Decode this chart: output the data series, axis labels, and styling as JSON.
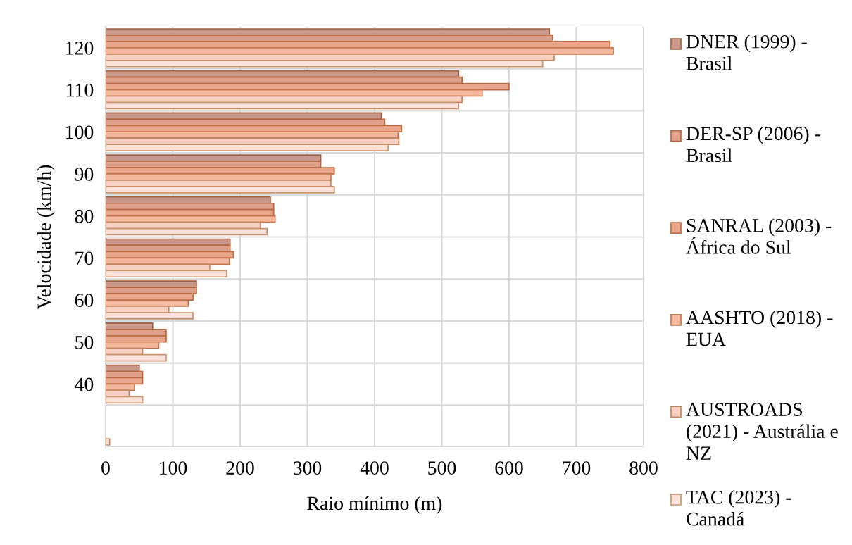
{
  "chart_data": {
    "type": "bar",
    "orientation": "horizontal",
    "xlabel": "Raio mínimo (m)",
    "ylabel": "Velocidade (km/h)",
    "categories": [
      "120",
      "110",
      "100",
      "90",
      "80",
      "70",
      "60",
      "50",
      "40",
      null
    ],
    "series": [
      {
        "name": "DNER (1999) - Brasil",
        "color": "#c8978a",
        "values": [
          660,
          525,
          410,
          320,
          245,
          185,
          135,
          70,
          50,
          null
        ]
      },
      {
        "name": "DER-SP (2006) - Brasil",
        "color": "#dea08a",
        "values": [
          665,
          530,
          415,
          320,
          250,
          185,
          135,
          90,
          55,
          null
        ]
      },
      {
        "name": "SANRAL (2003) - África do Sul",
        "color": "#eaa68a",
        "values": [
          750,
          600,
          440,
          340,
          250,
          190,
          130,
          90,
          55,
          null
        ]
      },
      {
        "name": "AASHTO (2018) - EUA",
        "color": "#f4b89e",
        "values": [
          755,
          560,
          435,
          335,
          252,
          184,
          123,
          79,
          43,
          null
        ]
      },
      {
        "name": "AUSTROADS (2021) - Austrália e NZ",
        "color": "#f6d0c2",
        "values": [
          667,
          530,
          436,
          335,
          230,
          155,
          94,
          55,
          35,
          null
        ]
      },
      {
        "name": "TAC (2023) - Canadá",
        "color": "#fae2da",
        "values": [
          650,
          525,
          420,
          340,
          240,
          180,
          130,
          90,
          55,
          6
        ]
      }
    ],
    "xlim": [
      0,
      800
    ],
    "xticks": [
      0,
      100,
      200,
      300,
      400,
      500,
      600,
      700,
      800
    ],
    "grid": true,
    "legend": "right"
  }
}
